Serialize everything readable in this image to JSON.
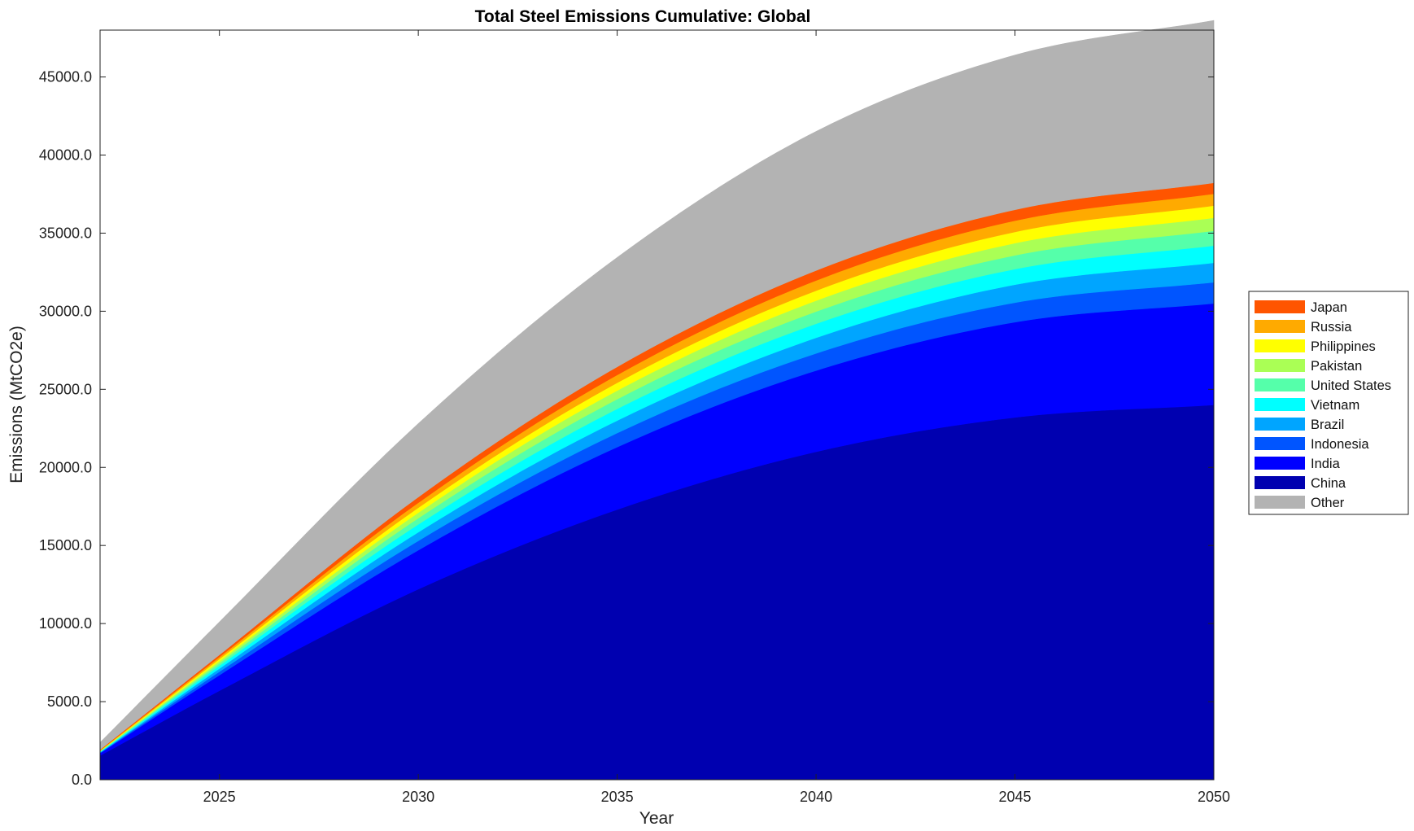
{
  "chart_data": {
    "type": "area",
    "stacked": true,
    "title": "Total Steel Emissions Cumulative: Global",
    "xlabel": "Year",
    "ylabel": "Emissions (MtCO2e)",
    "xlim": [
      2022,
      2050
    ],
    "ylim": [
      0,
      48000
    ],
    "x_ticks": [
      2025,
      2030,
      2035,
      2040,
      2045,
      2050
    ],
    "y_ticks": [
      0,
      5000,
      10000,
      15000,
      20000,
      25000,
      30000,
      35000,
      40000,
      45000
    ],
    "y_tick_labels": [
      "0.0",
      "5000.0",
      "10000.0",
      "15000.0",
      "20000.0",
      "25000.0",
      "30000.0",
      "35000.0",
      "40000.0",
      "45000.0"
    ],
    "grid": false,
    "legend_position": "outside-right",
    "x": [
      2022,
      2025,
      2030,
      2035,
      2040,
      2045,
      2050
    ],
    "series": [
      {
        "name": "China",
        "color": "#0000B0",
        "values": [
          1550,
          5700,
          12200,
          17300,
          21000,
          23200,
          24000
        ]
      },
      {
        "name": "India",
        "color": "#0000FF",
        "values": [
          150,
          1000,
          2500,
          4000,
          5200,
          6100,
          6500
        ]
      },
      {
        "name": "Indonesia",
        "color": "#0055FF",
        "values": [
          30,
          220,
          600,
          900,
          1100,
          1250,
          1350
        ]
      },
      {
        "name": "Brazil",
        "color": "#00A5FF",
        "values": [
          30,
          200,
          550,
          800,
          1000,
          1150,
          1250
        ]
      },
      {
        "name": "Vietnam",
        "color": "#00FFFF",
        "values": [
          30,
          180,
          500,
          750,
          900,
          1000,
          1100
        ]
      },
      {
        "name": "United States",
        "color": "#55FFAA",
        "values": [
          30,
          160,
          400,
          620,
          780,
          880,
          950
        ]
      },
      {
        "name": "Pakistan",
        "color": "#AAFF55",
        "values": [
          20,
          140,
          350,
          550,
          700,
          780,
          830
        ]
      },
      {
        "name": "Philippines",
        "color": "#FFFF00",
        "values": [
          20,
          130,
          320,
          500,
          640,
          720,
          780
        ]
      },
      {
        "name": "Russia",
        "color": "#FFAA00",
        "values": [
          30,
          130,
          320,
          500,
          650,
          720,
          760
        ]
      },
      {
        "name": "Japan",
        "color": "#FF5500",
        "values": [
          40,
          140,
          360,
          520,
          640,
          700,
          700
        ]
      },
      {
        "name": "Other",
        "color": "#B3B3B3",
        "values": [
          450,
          2100,
          4700,
          7000,
          8900,
          9900,
          10400
        ]
      }
    ],
    "legend_order": [
      "Japan",
      "Russia",
      "Philippines",
      "Pakistan",
      "United States",
      "Vietnam",
      "Brazil",
      "Indonesia",
      "India",
      "China",
      "Other"
    ]
  }
}
